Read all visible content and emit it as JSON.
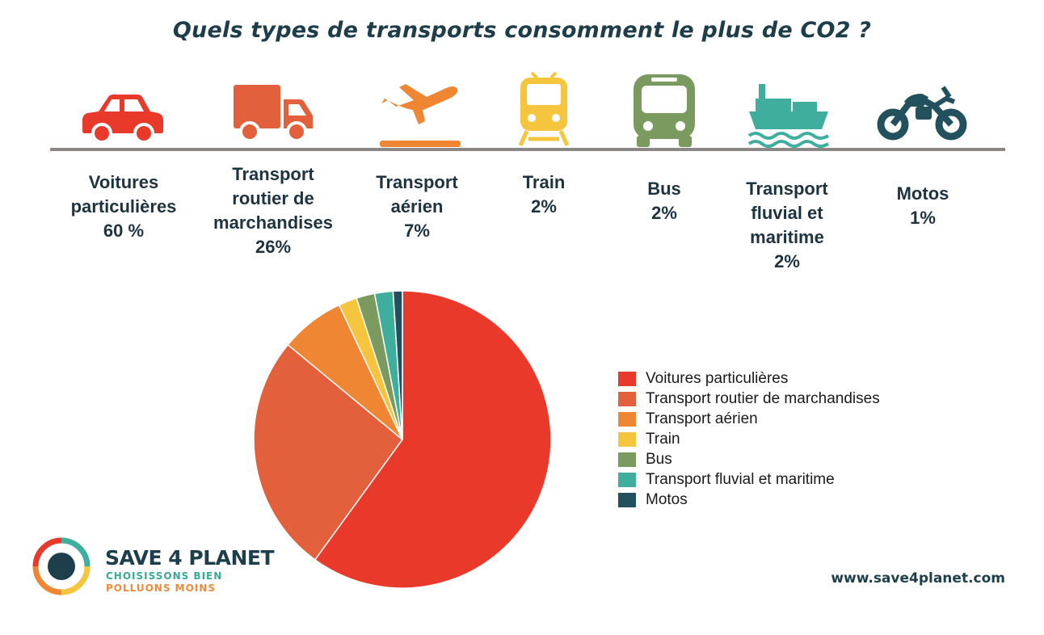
{
  "title": "Quels types de transports consomment le plus de CO2 ?",
  "categories": [
    {
      "lines": [
        "Voitures",
        "particulières"
      ],
      "pct": "60 %",
      "icon": "car-icon",
      "color": "#e8392a"
    },
    {
      "lines": [
        "Transport",
        "routier de",
        "marchandises"
      ],
      "pct": "26%",
      "icon": "truck-icon",
      "color": "#e3603c"
    },
    {
      "lines": [
        "Transport",
        "aérien"
      ],
      "pct": "7%",
      "icon": "airplane-icon",
      "color": "#ee8633"
    },
    {
      "lines": [
        "Train"
      ],
      "pct": "2%",
      "icon": "train-icon",
      "color": "#f4c53d"
    },
    {
      "lines": [
        "Bus"
      ],
      "pct": "2%",
      "icon": "bus-icon",
      "color": "#7b9a5f"
    },
    {
      "lines": [
        "Transport",
        "fluvial et",
        "maritime"
      ],
      "pct": "2%",
      "icon": "ship-icon",
      "color": "#3fae9c"
    },
    {
      "lines": [
        "Motos"
      ],
      "pct": "1%",
      "icon": "motorcycle-icon",
      "color": "#22505c"
    }
  ],
  "chart_data": {
    "type": "pie",
    "categories": [
      "Voitures particulières",
      "Transport routier de marchandises",
      "Transport aérien",
      "Train",
      "Bus",
      "Transport fluvial et maritime",
      "Motos"
    ],
    "values": [
      60,
      26,
      7,
      2,
      2,
      2,
      1
    ],
    "colors": [
      "#e8392a",
      "#e3603c",
      "#ee8633",
      "#f4c53d",
      "#7b9a5f",
      "#3fae9c",
      "#22505c"
    ],
    "legend_position": "right"
  },
  "brand": {
    "name": "SAVE 4 PLANET",
    "tagline1": "CHOISISSONS BIEN",
    "tagline2": "POLLUONS MOINS",
    "website": "www.save4planet.com"
  }
}
